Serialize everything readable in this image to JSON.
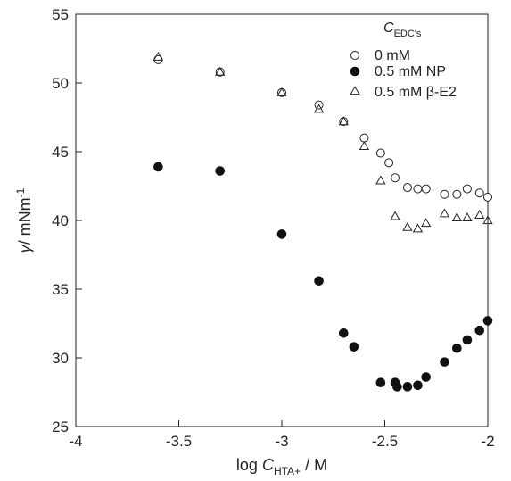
{
  "chart_data": {
    "type": "scatter",
    "xlabel": {
      "prefix": "log ",
      "var": "C",
      "sub": "HTA+",
      "suffix": " / M"
    },
    "ylabel": {
      "var": "γ",
      "text": "/ mNm",
      "sup": "-1"
    },
    "xlim": [
      -4,
      -2
    ],
    "ylim": [
      25,
      55
    ],
    "xticks": [
      -4,
      -3.5,
      -3,
      -2.5,
      -2
    ],
    "xtick_labels": [
      "-4",
      "-3.5",
      "-3",
      "-2.5",
      "-2"
    ],
    "yticks": [
      25,
      30,
      35,
      40,
      45,
      50,
      55
    ],
    "ytick_labels": [
      "25",
      "30",
      "35",
      "40",
      "45",
      "50",
      "55"
    ],
    "grid": false,
    "legend": {
      "placement": "top-right",
      "title_var": "C",
      "title_sub": "EDC's"
    },
    "series": [
      {
        "name": "0 mM",
        "marker": "circle-open",
        "points": [
          [
            -3.6,
            51.7
          ],
          [
            -3.3,
            50.8
          ],
          [
            -3.0,
            49.3
          ],
          [
            -2.82,
            48.4
          ],
          [
            -2.7,
            47.2
          ],
          [
            -2.6,
            46.0
          ],
          [
            -2.52,
            44.9
          ],
          [
            -2.48,
            44.2
          ],
          [
            -2.45,
            43.1
          ],
          [
            -2.39,
            42.4
          ],
          [
            -2.34,
            42.3
          ],
          [
            -2.3,
            42.3
          ],
          [
            -2.21,
            41.9
          ],
          [
            -2.15,
            41.9
          ],
          [
            -2.1,
            42.3
          ],
          [
            -2.04,
            42.0
          ],
          [
            -2.0,
            41.7
          ]
        ]
      },
      {
        "name": "0.5 mM NP",
        "marker": "circle-filled",
        "points": [
          [
            -3.6,
            43.9
          ],
          [
            -3.3,
            43.6
          ],
          [
            -3.0,
            39.0
          ],
          [
            -2.82,
            35.6
          ],
          [
            -2.7,
            31.8
          ],
          [
            -2.65,
            30.8
          ],
          [
            -2.52,
            28.2
          ],
          [
            -2.45,
            28.2
          ],
          [
            -2.44,
            27.9
          ],
          [
            -2.39,
            27.9
          ],
          [
            -2.34,
            28.0
          ],
          [
            -2.3,
            28.6
          ],
          [
            -2.21,
            29.7
          ],
          [
            -2.15,
            30.7
          ],
          [
            -2.1,
            31.3
          ],
          [
            -2.04,
            32.0
          ],
          [
            -2.0,
            32.7
          ]
        ]
      },
      {
        "name": "0.5 mM β-E2",
        "marker": "triangle-open",
        "points": [
          [
            -3.6,
            51.9
          ],
          [
            -3.3,
            50.8
          ],
          [
            -3.0,
            49.3
          ],
          [
            -2.82,
            48.1
          ],
          [
            -2.7,
            47.2
          ],
          [
            -2.6,
            45.4
          ],
          [
            -2.52,
            42.9
          ],
          [
            -2.45,
            40.3
          ],
          [
            -2.39,
            39.5
          ],
          [
            -2.34,
            39.4
          ],
          [
            -2.3,
            39.8
          ],
          [
            -2.21,
            40.5
          ],
          [
            -2.15,
            40.2
          ],
          [
            -2.1,
            40.2
          ],
          [
            -2.04,
            40.4
          ],
          [
            -2.0,
            40.0
          ]
        ]
      }
    ]
  }
}
